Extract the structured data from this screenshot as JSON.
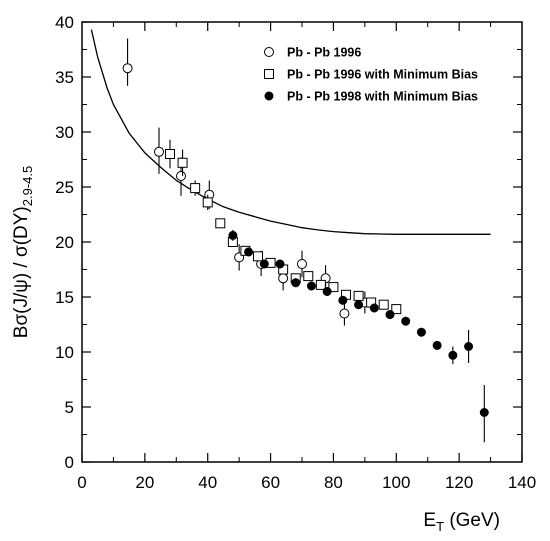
{
  "chart_data": {
    "type": "scatter",
    "title": "",
    "xlabel": {
      "main": "E",
      "sub": "T",
      "unit": " (GeV)"
    },
    "ylabel": {
      "main": "Bσ(J/ψ) / σ(DY)",
      "sub": "2.9-4.5"
    },
    "xlim": [
      0,
      140
    ],
    "ylim": [
      0,
      40
    ],
    "xticks": [
      0,
      20,
      40,
      60,
      80,
      100,
      120,
      140
    ],
    "yticks": [
      0,
      5,
      10,
      15,
      20,
      25,
      30,
      35,
      40
    ],
    "grid": false,
    "legend_position": "top-right",
    "series": [
      {
        "name": "Pb - Pb 1996",
        "marker": "open-circle",
        "points": [
          {
            "x": 14.5,
            "y": 35.8,
            "lo": 34.2,
            "hi": 38.5
          },
          {
            "x": 24.5,
            "y": 28.2,
            "lo": 26.2,
            "hi": 30.4
          },
          {
            "x": 31.5,
            "y": 26.0,
            "lo": 24.2,
            "hi": 27.7
          },
          {
            "x": 40.5,
            "y": 24.3,
            "lo": 23.0,
            "hi": 25.6
          },
          {
            "x": 50.0,
            "y": 18.6,
            "lo": 17.4,
            "hi": 19.8
          },
          {
            "x": 57.0,
            "y": 18.0,
            "lo": 16.9,
            "hi": 19.2
          },
          {
            "x": 64.0,
            "y": 16.7,
            "lo": 15.6,
            "hi": 17.9
          },
          {
            "x": 70.0,
            "y": 18.0,
            "lo": 16.8,
            "hi": 19.2
          },
          {
            "x": 77.5,
            "y": 16.7,
            "lo": 15.5,
            "hi": 17.9
          },
          {
            "x": 83.5,
            "y": 13.5,
            "lo": 12.4,
            "hi": 14.6
          },
          {
            "x": 90.0,
            "y": 14.5,
            "lo": 13.5,
            "hi": 15.5
          }
        ]
      },
      {
        "name": "Pb - Pb 1996 with Minimum Bias",
        "marker": "open-square",
        "points": [
          {
            "x": 28.0,
            "y": 28.0,
            "lo": 26.7,
            "hi": 29.3
          },
          {
            "x": 32.0,
            "y": 27.2,
            "lo": 26.0,
            "hi": 28.4
          },
          {
            "x": 36.0,
            "y": 24.9,
            "lo": 24.2,
            "hi": 25.6
          },
          {
            "x": 40.0,
            "y": 23.6,
            "lo": 22.9,
            "hi": 24.3
          },
          {
            "x": 44.0,
            "y": 21.7,
            "lo": 21.3,
            "hi": 22.1
          },
          {
            "x": 48.0,
            "y": 20.0,
            "lo": 19.6,
            "hi": 20.4
          },
          {
            "x": 52.0,
            "y": 19.2,
            "lo": 18.8,
            "hi": 19.6
          },
          {
            "x": 56.0,
            "y": 18.7,
            "lo": 18.3,
            "hi": 19.1
          },
          {
            "x": 60.0,
            "y": 18.1,
            "lo": 17.7,
            "hi": 18.5
          },
          {
            "x": 64.0,
            "y": 17.5,
            "lo": 17.1,
            "hi": 17.9
          },
          {
            "x": 68.0,
            "y": 16.7,
            "lo": 16.3,
            "hi": 17.1
          },
          {
            "x": 72.0,
            "y": 16.9,
            "lo": 16.5,
            "hi": 17.3
          },
          {
            "x": 76.0,
            "y": 16.1,
            "lo": 15.7,
            "hi": 16.5
          },
          {
            "x": 80.0,
            "y": 15.9,
            "lo": 15.5,
            "hi": 16.3
          },
          {
            "x": 84.0,
            "y": 15.2,
            "lo": 14.8,
            "hi": 15.6
          },
          {
            "x": 88.0,
            "y": 15.1,
            "lo": 14.7,
            "hi": 15.5
          },
          {
            "x": 92.0,
            "y": 14.5,
            "lo": 14.1,
            "hi": 14.9
          },
          {
            "x": 96.0,
            "y": 14.3,
            "lo": 13.9,
            "hi": 14.7
          },
          {
            "x": 100.0,
            "y": 13.9,
            "lo": 13.5,
            "hi": 14.3
          }
        ]
      },
      {
        "name": "Pb - Pb 1998 with Minimum Bias",
        "marker": "filled-circle",
        "points": [
          {
            "x": 48.0,
            "y": 20.6,
            "lo": 20.1,
            "hi": 21.1
          },
          {
            "x": 53.0,
            "y": 19.1,
            "lo": 18.7,
            "hi": 19.5
          },
          {
            "x": 58.0,
            "y": 18.0,
            "lo": 17.6,
            "hi": 18.4
          },
          {
            "x": 63.0,
            "y": 18.0,
            "lo": 17.6,
            "hi": 18.4
          },
          {
            "x": 68.0,
            "y": 16.3,
            "lo": 15.9,
            "hi": 16.7
          },
          {
            "x": 73.0,
            "y": 16.0,
            "lo": 15.6,
            "hi": 16.4
          },
          {
            "x": 78.0,
            "y": 15.5,
            "lo": 15.1,
            "hi": 15.9
          },
          {
            "x": 83.0,
            "y": 14.7,
            "lo": 14.3,
            "hi": 15.1
          },
          {
            "x": 88.0,
            "y": 14.3,
            "lo": 13.9,
            "hi": 14.7
          },
          {
            "x": 93.0,
            "y": 14.0,
            "lo": 13.6,
            "hi": 14.4
          },
          {
            "x": 98.0,
            "y": 13.4,
            "lo": 13.0,
            "hi": 13.8
          },
          {
            "x": 103.0,
            "y": 12.8,
            "lo": 12.4,
            "hi": 13.2
          },
          {
            "x": 108.0,
            "y": 11.8,
            "lo": 11.4,
            "hi": 12.2
          },
          {
            "x": 113.0,
            "y": 10.6,
            "lo": 10.2,
            "hi": 11.0
          },
          {
            "x": 118.0,
            "y": 9.7,
            "lo": 8.9,
            "hi": 10.5
          },
          {
            "x": 123.0,
            "y": 10.5,
            "lo": 9.0,
            "hi": 12.0
          },
          {
            "x": 128.0,
            "y": 4.5,
            "lo": 1.8,
            "hi": 7.0
          }
        ]
      }
    ],
    "curve": {
      "name": "",
      "points": [
        {
          "x": 3,
          "y": 39.3
        },
        {
          "x": 5,
          "y": 36.8
        },
        {
          "x": 8,
          "y": 34.0
        },
        {
          "x": 10,
          "y": 32.5
        },
        {
          "x": 15,
          "y": 29.9
        },
        {
          "x": 20,
          "y": 28.1
        },
        {
          "x": 25,
          "y": 26.8
        },
        {
          "x": 30,
          "y": 25.6
        },
        {
          "x": 35,
          "y": 24.7
        },
        {
          "x": 40,
          "y": 23.9
        },
        {
          "x": 45,
          "y": 23.2
        },
        {
          "x": 50,
          "y": 22.7
        },
        {
          "x": 55,
          "y": 22.3
        },
        {
          "x": 60,
          "y": 21.9
        },
        {
          "x": 65,
          "y": 21.6
        },
        {
          "x": 70,
          "y": 21.3
        },
        {
          "x": 75,
          "y": 21.1
        },
        {
          "x": 80,
          "y": 20.95
        },
        {
          "x": 85,
          "y": 20.85
        },
        {
          "x": 90,
          "y": 20.75
        },
        {
          "x": 100,
          "y": 20.7
        },
        {
          "x": 110,
          "y": 20.7
        },
        {
          "x": 120,
          "y": 20.7
        },
        {
          "x": 130,
          "y": 20.7
        }
      ]
    }
  }
}
